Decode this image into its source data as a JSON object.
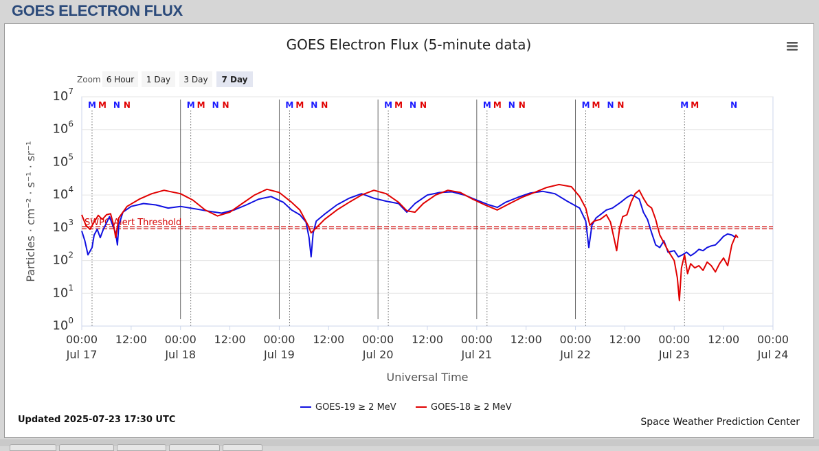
{
  "page": {
    "title": "GOES ELECTRON FLUX"
  },
  "menu": {
    "icon": "hamburger-menu-icon"
  },
  "zoom": {
    "label": "Zoom",
    "buttons": [
      "6 Hour",
      "1 Day",
      "3 Day",
      "7 Day"
    ],
    "selected": "7 Day"
  },
  "footer": {
    "updated": "Updated 2025-07-23 17:30 UTC",
    "credit": "Space Weather Prediction Center"
  },
  "chart_data": {
    "type": "line",
    "title": "GOES Electron Flux (5-minute data)",
    "xlabel": "Universal Time",
    "ylabel": "Particles · cm⁻² · s⁻¹ · sr⁻¹",
    "y_scale": "log",
    "ylim": [
      1,
      10000000
    ],
    "xlim": [
      "2025-07-17 00:00",
      "2025-07-24 00:00"
    ],
    "y_ticks": [
      {
        "value": 1,
        "base": "10",
        "exp": "0"
      },
      {
        "value": 10,
        "base": "10",
        "exp": "1"
      },
      {
        "value": 100,
        "base": "10",
        "exp": "2"
      },
      {
        "value": 1000,
        "base": "10",
        "exp": "3"
      },
      {
        "value": 10000,
        "base": "10",
        "exp": "4"
      },
      {
        "value": 100000,
        "base": "10",
        "exp": "5"
      },
      {
        "value": 1000000,
        "base": "10",
        "exp": "6"
      },
      {
        "value": 10000000,
        "base": "10",
        "exp": "7"
      }
    ],
    "x_ticks": [
      {
        "t": "2025-07-17 00:00",
        "time": "00:00",
        "date": "Jul 17"
      },
      {
        "t": "2025-07-17 12:00",
        "time": "12:00",
        "date": ""
      },
      {
        "t": "2025-07-18 00:00",
        "time": "00:00",
        "date": "Jul 18"
      },
      {
        "t": "2025-07-18 12:00",
        "time": "12:00",
        "date": ""
      },
      {
        "t": "2025-07-19 00:00",
        "time": "00:00",
        "date": "Jul 19"
      },
      {
        "t": "2025-07-19 12:00",
        "time": "12:00",
        "date": ""
      },
      {
        "t": "2025-07-20 00:00",
        "time": "00:00",
        "date": "Jul 20"
      },
      {
        "t": "2025-07-20 12:00",
        "time": "12:00",
        "date": ""
      },
      {
        "t": "2025-07-21 00:00",
        "time": "00:00",
        "date": "Jul 21"
      },
      {
        "t": "2025-07-21 12:00",
        "time": "12:00",
        "date": ""
      },
      {
        "t": "2025-07-22 00:00",
        "time": "00:00",
        "date": "Jul 22"
      },
      {
        "t": "2025-07-22 12:00",
        "time": "12:00",
        "date": ""
      },
      {
        "t": "2025-07-23 00:00",
        "time": "00:00",
        "date": "Jul 23"
      },
      {
        "t": "2025-07-23 12:00",
        "time": "12:00",
        "date": ""
      },
      {
        "t": "2025-07-24 00:00",
        "time": "00:00",
        "date": "Jul 24"
      }
    ],
    "threshold": {
      "label": "SWPC Alert Threshold",
      "value": 1000,
      "color": "#d40000"
    },
    "day_lines": [
      "2025-07-18 00:00",
      "2025-07-19 00:00",
      "2025-07-20 00:00",
      "2025-07-21 00:00",
      "2025-07-22 00:00"
    ],
    "noon_lines": [
      "2025-07-17 02:30",
      "2025-07-18 02:30",
      "2025-07-19 02:30",
      "2025-07-20 02:30",
      "2025-07-21 02:30",
      "2025-07-22 02:30",
      "2025-07-23 02:30"
    ],
    "mn_markers": [
      {
        "t": "2025-07-17 02:30",
        "label": "M",
        "color": "#1a1aff"
      },
      {
        "t": "2025-07-17 05:00",
        "label": "M",
        "color": "#e00000"
      },
      {
        "t": "2025-07-17 08:30",
        "label": "N",
        "color": "#1a1aff"
      },
      {
        "t": "2025-07-17 11:00",
        "label": "N",
        "color": "#e00000"
      },
      {
        "t": "2025-07-18 02:30",
        "label": "M",
        "color": "#1a1aff"
      },
      {
        "t": "2025-07-18 05:00",
        "label": "M",
        "color": "#e00000"
      },
      {
        "t": "2025-07-18 08:30",
        "label": "N",
        "color": "#1a1aff"
      },
      {
        "t": "2025-07-18 11:00",
        "label": "N",
        "color": "#e00000"
      },
      {
        "t": "2025-07-19 02:30",
        "label": "M",
        "color": "#1a1aff"
      },
      {
        "t": "2025-07-19 05:00",
        "label": "M",
        "color": "#e00000"
      },
      {
        "t": "2025-07-19 08:30",
        "label": "N",
        "color": "#1a1aff"
      },
      {
        "t": "2025-07-19 11:00",
        "label": "N",
        "color": "#e00000"
      },
      {
        "t": "2025-07-20 02:30",
        "label": "M",
        "color": "#1a1aff"
      },
      {
        "t": "2025-07-20 05:00",
        "label": "M",
        "color": "#e00000"
      },
      {
        "t": "2025-07-20 08:30",
        "label": "N",
        "color": "#1a1aff"
      },
      {
        "t": "2025-07-20 11:00",
        "label": "N",
        "color": "#e00000"
      },
      {
        "t": "2025-07-21 02:30",
        "label": "M",
        "color": "#1a1aff"
      },
      {
        "t": "2025-07-21 05:00",
        "label": "M",
        "color": "#e00000"
      },
      {
        "t": "2025-07-21 08:30",
        "label": "N",
        "color": "#1a1aff"
      },
      {
        "t": "2025-07-21 11:00",
        "label": "N",
        "color": "#e00000"
      },
      {
        "t": "2025-07-22 02:30",
        "label": "M",
        "color": "#1a1aff"
      },
      {
        "t": "2025-07-22 05:00",
        "label": "M",
        "color": "#e00000"
      },
      {
        "t": "2025-07-22 08:30",
        "label": "N",
        "color": "#1a1aff"
      },
      {
        "t": "2025-07-22 11:00",
        "label": "N",
        "color": "#e00000"
      },
      {
        "t": "2025-07-23 02:30",
        "label": "M",
        "color": "#1a1aff"
      },
      {
        "t": "2025-07-23 05:00",
        "label": "M",
        "color": "#e00000"
      },
      {
        "t": "2025-07-23 14:30",
        "label": "N",
        "color": "#1a1aff"
      }
    ],
    "series": [
      {
        "name": "GOES-19 ≥ 2 MeV",
        "color": "#1010e0",
        "points": [
          [
            "2025-07-17 00:00",
            800
          ],
          [
            "2025-07-17 00:45",
            400
          ],
          [
            "2025-07-17 01:30",
            150
          ],
          [
            "2025-07-17 02:30",
            250
          ],
          [
            "2025-07-17 03:00",
            600
          ],
          [
            "2025-07-17 03:45",
            900
          ],
          [
            "2025-07-17 04:30",
            500
          ],
          [
            "2025-07-17 05:15",
            900
          ],
          [
            "2025-07-17 06:00",
            1400
          ],
          [
            "2025-07-17 06:45",
            2200
          ],
          [
            "2025-07-17 07:30",
            1200
          ],
          [
            "2025-07-17 08:15",
            700
          ],
          [
            "2025-07-17 08:40",
            300
          ],
          [
            "2025-07-17 09:00",
            1200
          ],
          [
            "2025-07-17 10:00",
            3000
          ],
          [
            "2025-07-17 12:00",
            4500
          ],
          [
            "2025-07-17 15:00",
            5500
          ],
          [
            "2025-07-17 18:00",
            5000
          ],
          [
            "2025-07-17 21:00",
            4000
          ],
          [
            "2025-07-18 00:00",
            4500
          ],
          [
            "2025-07-18 04:00",
            3700
          ],
          [
            "2025-07-18 07:00",
            3200
          ],
          [
            "2025-07-18 10:00",
            2800
          ],
          [
            "2025-07-18 13:00",
            3500
          ],
          [
            "2025-07-18 16:00",
            5000
          ],
          [
            "2025-07-18 19:00",
            7500
          ],
          [
            "2025-07-18 22:00",
            9000
          ],
          [
            "2025-07-19 01:00",
            6000
          ],
          [
            "2025-07-19 03:00",
            3500
          ],
          [
            "2025-07-19 05:00",
            2500
          ],
          [
            "2025-07-19 06:30",
            1500
          ],
          [
            "2025-07-19 07:15",
            500
          ],
          [
            "2025-07-19 07:45",
            130
          ],
          [
            "2025-07-19 08:15",
            700
          ],
          [
            "2025-07-19 09:00",
            1600
          ],
          [
            "2025-07-19 11:00",
            2600
          ],
          [
            "2025-07-19 14:00",
            5000
          ],
          [
            "2025-07-19 17:00",
            8000
          ],
          [
            "2025-07-19 20:00",
            11000
          ],
          [
            "2025-07-19 23:00",
            8000
          ],
          [
            "2025-07-20 02:00",
            6500
          ],
          [
            "2025-07-20 05:00",
            5500
          ],
          [
            "2025-07-20 07:00",
            3000
          ],
          [
            "2025-07-20 09:00",
            5500
          ],
          [
            "2025-07-20 12:00",
            10000
          ],
          [
            "2025-07-20 15:00",
            12000
          ],
          [
            "2025-07-20 18:00",
            12500
          ],
          [
            "2025-07-20 21:00",
            10000
          ],
          [
            "2025-07-21 00:00",
            7000
          ],
          [
            "2025-07-21 03:00",
            5000
          ],
          [
            "2025-07-21 05:00",
            4200
          ],
          [
            "2025-07-21 07:00",
            6000
          ],
          [
            "2025-07-21 10:00",
            8500
          ],
          [
            "2025-07-21 13:00",
            11500
          ],
          [
            "2025-07-21 16:00",
            13000
          ],
          [
            "2025-07-21 19:00",
            11000
          ],
          [
            "2025-07-21 22:00",
            6500
          ],
          [
            "2025-07-22 01:00",
            4000
          ],
          [
            "2025-07-22 02:30",
            1600
          ],
          [
            "2025-07-22 03:15",
            250
          ],
          [
            "2025-07-22 04:00",
            1200
          ],
          [
            "2025-07-22 05:00",
            2000
          ],
          [
            "2025-07-22 06:00",
            2500
          ],
          [
            "2025-07-22 07:30",
            3500
          ],
          [
            "2025-07-22 09:00",
            4000
          ],
          [
            "2025-07-22 11:00",
            6000
          ],
          [
            "2025-07-22 12:30",
            8500
          ],
          [
            "2025-07-22 13:30",
            10000
          ],
          [
            "2025-07-22 14:30",
            9000
          ],
          [
            "2025-07-22 15:30",
            7500
          ],
          [
            "2025-07-22 16:30",
            3000
          ],
          [
            "2025-07-22 17:30",
            1800
          ],
          [
            "2025-07-22 18:30",
            700
          ],
          [
            "2025-07-22 19:30",
            300
          ],
          [
            "2025-07-22 20:30",
            250
          ],
          [
            "2025-07-22 21:30",
            400
          ],
          [
            "2025-07-22 22:30",
            180
          ],
          [
            "2025-07-23 00:00",
            200
          ],
          [
            "2025-07-23 01:00",
            130
          ],
          [
            "2025-07-23 02:00",
            150
          ],
          [
            "2025-07-23 03:00",
            180
          ],
          [
            "2025-07-23 04:00",
            140
          ],
          [
            "2025-07-23 05:00",
            170
          ],
          [
            "2025-07-23 06:00",
            220
          ],
          [
            "2025-07-23 07:00",
            200
          ],
          [
            "2025-07-23 08:00",
            250
          ],
          [
            "2025-07-23 09:00",
            280
          ],
          [
            "2025-07-23 10:00",
            300
          ],
          [
            "2025-07-23 11:00",
            400
          ],
          [
            "2025-07-23 12:00",
            550
          ],
          [
            "2025-07-23 13:00",
            650
          ],
          [
            "2025-07-23 14:00",
            600
          ],
          [
            "2025-07-23 15:00",
            500
          ]
        ]
      },
      {
        "name": "GOES-18 ≥ 2 MeV",
        "color": "#e00000",
        "points": [
          [
            "2025-07-17 00:00",
            2500
          ],
          [
            "2025-07-17 01:00",
            1200
          ],
          [
            "2025-07-17 02:00",
            900
          ],
          [
            "2025-07-17 03:00",
            1500
          ],
          [
            "2025-07-17 04:00",
            2400
          ],
          [
            "2025-07-17 05:00",
            1800
          ],
          [
            "2025-07-17 06:00",
            2500
          ],
          [
            "2025-07-17 07:00",
            2700
          ],
          [
            "2025-07-17 07:45",
            1200
          ],
          [
            "2025-07-17 08:15",
            500
          ],
          [
            "2025-07-17 09:00",
            2000
          ],
          [
            "2025-07-17 11:00",
            4500
          ],
          [
            "2025-07-17 14:00",
            7500
          ],
          [
            "2025-07-17 17:00",
            11000
          ],
          [
            "2025-07-17 20:00",
            14000
          ],
          [
            "2025-07-18 00:00",
            11000
          ],
          [
            "2025-07-18 03:00",
            7000
          ],
          [
            "2025-07-18 06:00",
            3500
          ],
          [
            "2025-07-18 09:00",
            2300
          ],
          [
            "2025-07-18 12:00",
            3000
          ],
          [
            "2025-07-18 15:00",
            5500
          ],
          [
            "2025-07-18 18:00",
            10000
          ],
          [
            "2025-07-18 21:00",
            15000
          ],
          [
            "2025-07-19 00:00",
            12000
          ],
          [
            "2025-07-19 03:00",
            6000
          ],
          [
            "2025-07-19 05:00",
            3500
          ],
          [
            "2025-07-19 07:00",
            1200
          ],
          [
            "2025-07-19 07:45",
            700
          ],
          [
            "2025-07-19 09:00",
            1000
          ],
          [
            "2025-07-19 11:00",
            1800
          ],
          [
            "2025-07-19 14:00",
            3500
          ],
          [
            "2025-07-19 17:00",
            6000
          ],
          [
            "2025-07-19 20:00",
            10000
          ],
          [
            "2025-07-19 23:00",
            14000
          ],
          [
            "2025-07-20 02:00",
            11000
          ],
          [
            "2025-07-20 05:00",
            6000
          ],
          [
            "2025-07-20 07:00",
            3300
          ],
          [
            "2025-07-20 09:00",
            3000
          ],
          [
            "2025-07-20 11:00",
            5500
          ],
          [
            "2025-07-20 14:00",
            10000
          ],
          [
            "2025-07-20 17:00",
            14000
          ],
          [
            "2025-07-20 20:00",
            12000
          ],
          [
            "2025-07-20 23:00",
            7500
          ],
          [
            "2025-07-21 02:00",
            5000
          ],
          [
            "2025-07-21 05:00",
            3500
          ],
          [
            "2025-07-21 08:00",
            5500
          ],
          [
            "2025-07-21 11:00",
            8500
          ],
          [
            "2025-07-21 14:00",
            12000
          ],
          [
            "2025-07-21 17:00",
            17000
          ],
          [
            "2025-07-21 20:00",
            21000
          ],
          [
            "2025-07-21 23:00",
            18000
          ],
          [
            "2025-07-22 01:00",
            9000
          ],
          [
            "2025-07-22 02:30",
            4000
          ],
          [
            "2025-07-22 03:30",
            1200
          ],
          [
            "2025-07-22 04:30",
            1600
          ],
          [
            "2025-07-22 06:00",
            1800
          ],
          [
            "2025-07-22 07:30",
            2500
          ],
          [
            "2025-07-22 08:30",
            1500
          ],
          [
            "2025-07-22 09:30",
            400
          ],
          [
            "2025-07-22 10:00",
            200
          ],
          [
            "2025-07-22 10:45",
            1000
          ],
          [
            "2025-07-22 11:30",
            2200
          ],
          [
            "2025-07-22 12:30",
            2500
          ],
          [
            "2025-07-22 13:30",
            6000
          ],
          [
            "2025-07-22 14:30",
            11000
          ],
          [
            "2025-07-22 15:30",
            14000
          ],
          [
            "2025-07-22 16:30",
            8000
          ],
          [
            "2025-07-22 17:30",
            5000
          ],
          [
            "2025-07-22 18:30",
            4000
          ],
          [
            "2025-07-22 19:30",
            1800
          ],
          [
            "2025-07-22 20:30",
            600
          ],
          [
            "2025-07-22 21:30",
            350
          ],
          [
            "2025-07-22 22:30",
            200
          ],
          [
            "2025-07-23 00:00",
            100
          ],
          [
            "2025-07-23 00:45",
            30
          ],
          [
            "2025-07-23 01:15",
            6
          ],
          [
            "2025-07-23 01:45",
            60
          ],
          [
            "2025-07-23 02:30",
            150
          ],
          [
            "2025-07-23 03:15",
            40
          ],
          [
            "2025-07-23 04:00",
            80
          ],
          [
            "2025-07-23 05:00",
            60
          ],
          [
            "2025-07-23 06:00",
            70
          ],
          [
            "2025-07-23 07:00",
            50
          ],
          [
            "2025-07-23 08:00",
            90
          ],
          [
            "2025-07-23 09:00",
            70
          ],
          [
            "2025-07-23 10:00",
            45
          ],
          [
            "2025-07-23 11:00",
            80
          ],
          [
            "2025-07-23 12:00",
            120
          ],
          [
            "2025-07-23 13:00",
            70
          ],
          [
            "2025-07-23 14:00",
            300
          ],
          [
            "2025-07-23 15:00",
            600
          ],
          [
            "2025-07-23 15:30",
            500
          ]
        ]
      }
    ]
  }
}
